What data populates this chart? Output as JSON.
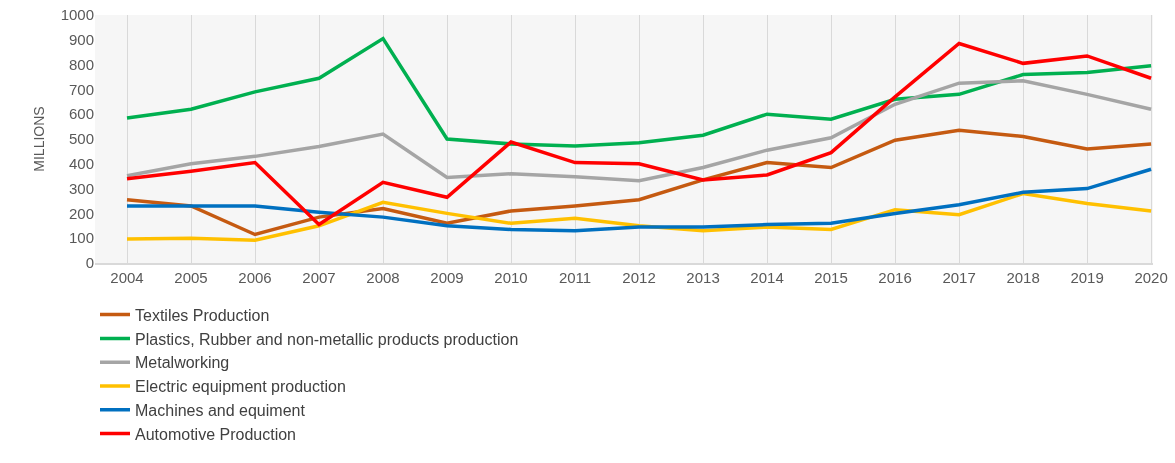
{
  "chart_data": {
    "type": "line",
    "ylabel": "MILLIONS",
    "categories": [
      "2004",
      "2005",
      "2006",
      "2007",
      "2008",
      "2009",
      "2010",
      "2011",
      "2012",
      "2013",
      "2014",
      "2015",
      "2016",
      "2017",
      "2018",
      "2019",
      "2020"
    ],
    "series": [
      {
        "name": "Textiles Production",
        "color": "#c55a11",
        "values": [
          255,
          230,
          115,
          185,
          220,
          160,
          210,
          230,
          255,
          335,
          405,
          385,
          495,
          535,
          510,
          460,
          480
        ]
      },
      {
        "name": "Plastics, Rubber and non-metallic products production",
        "color": "#00b050",
        "values": [
          585,
          620,
          690,
          745,
          905,
          500,
          480,
          472,
          485,
          515,
          600,
          580,
          660,
          680,
          760,
          768,
          795
        ]
      },
      {
        "name": "Metalworking",
        "color": "#a5a5a5",
        "values": [
          352,
          400,
          430,
          470,
          520,
          345,
          360,
          348,
          332,
          385,
          455,
          505,
          640,
          725,
          735,
          680,
          620
        ]
      },
      {
        "name": "Electric equipment production",
        "color": "#ffc000",
        "values": [
          97,
          100,
          92,
          150,
          245,
          200,
          160,
          180,
          150,
          130,
          145,
          135,
          215,
          195,
          280,
          240,
          210
        ]
      },
      {
        "name": "Machines and equiment",
        "color": "#0070c0",
        "values": [
          230,
          230,
          230,
          205,
          185,
          150,
          135,
          130,
          145,
          145,
          155,
          160,
          200,
          235,
          285,
          300,
          378
        ]
      },
      {
        "name": "Automotive Production",
        "color": "#ff0000",
        "values": [
          340,
          370,
          405,
          155,
          325,
          265,
          488,
          405,
          400,
          335,
          355,
          445,
          670,
          885,
          805,
          835,
          745
        ]
      }
    ],
    "ylim": [
      0,
      1000
    ],
    "yticks": [
      0,
      100,
      200,
      300,
      400,
      500,
      600,
      700,
      800,
      900,
      1000
    ],
    "grid": "x",
    "legend": "bottom",
    "marker": "none",
    "line_style": "solid"
  }
}
